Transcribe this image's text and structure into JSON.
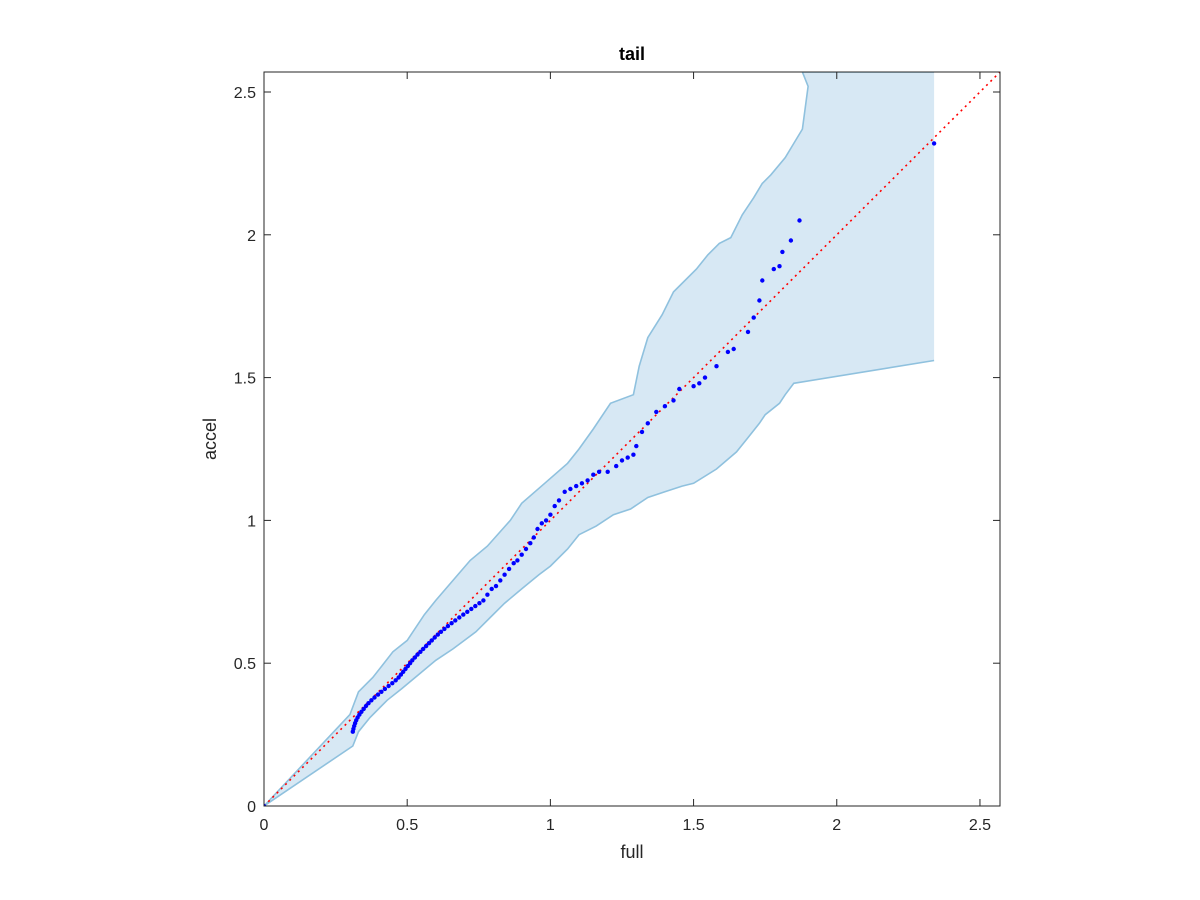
{
  "chart_data": {
    "type": "scatter",
    "title": "tail",
    "xlabel": "full",
    "ylabel": "accel",
    "xlim": [
      0,
      2.57
    ],
    "ylim": [
      0,
      2.57
    ],
    "xticks": [
      0,
      0.5,
      1,
      1.5,
      2,
      2.5
    ],
    "yticks": [
      0,
      0.5,
      1,
      1.5,
      2,
      2.5
    ],
    "xtick_labels": [
      "0",
      "0.5",
      "1",
      "1.5",
      "2",
      "2.5"
    ],
    "ytick_labels": [
      "0",
      "0.5",
      "1",
      "1.5",
      "2",
      "2.5"
    ],
    "grid": false,
    "colors": {
      "points": "#0000ff",
      "reference_line": "#ff0000",
      "band_fill": "#d7e8f4",
      "band_edge": "#8fc1de",
      "axis": "#262626"
    },
    "reference_line": {
      "x": [
        0,
        2.57
      ],
      "y": [
        0,
        2.57
      ],
      "style": "dotted"
    },
    "band": {
      "upper": [
        [
          0,
          0
        ],
        [
          0.3,
          0.32
        ],
        [
          0.33,
          0.4
        ],
        [
          0.38,
          0.45
        ],
        [
          0.45,
          0.54
        ],
        [
          0.5,
          0.58
        ],
        [
          0.56,
          0.67
        ],
        [
          0.6,
          0.72
        ],
        [
          0.66,
          0.79
        ],
        [
          0.72,
          0.86
        ],
        [
          0.78,
          0.91
        ],
        [
          0.86,
          1.0
        ],
        [
          0.9,
          1.06
        ],
        [
          0.98,
          1.13
        ],
        [
          1.06,
          1.2
        ],
        [
          1.1,
          1.25
        ],
        [
          1.15,
          1.32
        ],
        [
          1.21,
          1.41
        ],
        [
          1.29,
          1.44
        ],
        [
          1.31,
          1.54
        ],
        [
          1.34,
          1.64
        ],
        [
          1.39,
          1.72
        ],
        [
          1.43,
          1.8
        ],
        [
          1.51,
          1.88
        ],
        [
          1.55,
          1.93
        ],
        [
          1.59,
          1.97
        ],
        [
          1.63,
          1.99
        ],
        [
          1.67,
          2.07
        ],
        [
          1.71,
          2.13
        ],
        [
          1.74,
          2.18
        ],
        [
          1.77,
          2.21
        ],
        [
          1.82,
          2.27
        ],
        [
          1.85,
          2.32
        ],
        [
          1.88,
          2.37
        ],
        [
          1.9,
          2.52
        ],
        [
          1.88,
          2.57
        ],
        [
          2.34,
          2.57
        ]
      ],
      "lower": [
        [
          2.34,
          1.56
        ],
        [
          1.85,
          1.48
        ],
        [
          1.82,
          1.44
        ],
        [
          1.8,
          1.41
        ],
        [
          1.75,
          1.37
        ],
        [
          1.73,
          1.34
        ],
        [
          1.69,
          1.29
        ],
        [
          1.65,
          1.24
        ],
        [
          1.58,
          1.18
        ],
        [
          1.5,
          1.13
        ],
        [
          1.46,
          1.12
        ],
        [
          1.4,
          1.1
        ],
        [
          1.34,
          1.08
        ],
        [
          1.28,
          1.04
        ],
        [
          1.22,
          1.02
        ],
        [
          1.16,
          0.98
        ],
        [
          1.1,
          0.95
        ],
        [
          1.06,
          0.9
        ],
        [
          1.0,
          0.84
        ],
        [
          0.96,
          0.81
        ],
        [
          0.9,
          0.76
        ],
        [
          0.84,
          0.71
        ],
        [
          0.79,
          0.66
        ],
        [
          0.74,
          0.61
        ],
        [
          0.66,
          0.55
        ],
        [
          0.6,
          0.51
        ],
        [
          0.54,
          0.46
        ],
        [
          0.48,
          0.41
        ],
        [
          0.43,
          0.37
        ],
        [
          0.37,
          0.31
        ],
        [
          0.33,
          0.26
        ],
        [
          0.31,
          0.21
        ],
        [
          0,
          0
        ]
      ]
    },
    "points": [
      [
        0.0,
        0.0
      ],
      [
        0.31,
        0.26
      ],
      [
        0.312,
        0.27
      ],
      [
        0.315,
        0.28
      ],
      [
        0.318,
        0.29
      ],
      [
        0.322,
        0.3
      ],
      [
        0.327,
        0.31
      ],
      [
        0.333,
        0.32
      ],
      [
        0.34,
        0.33
      ],
      [
        0.348,
        0.34
      ],
      [
        0.356,
        0.35
      ],
      [
        0.365,
        0.36
      ],
      [
        0.375,
        0.37
      ],
      [
        0.386,
        0.38
      ],
      [
        0.398,
        0.39
      ],
      [
        0.41,
        0.4
      ],
      [
        0.422,
        0.41
      ],
      [
        0.435,
        0.42
      ],
      [
        0.448,
        0.43
      ],
      [
        0.46,
        0.44
      ],
      [
        0.47,
        0.45
      ],
      [
        0.478,
        0.46
      ],
      [
        0.486,
        0.47
      ],
      [
        0.494,
        0.48
      ],
      [
        0.502,
        0.49
      ],
      [
        0.51,
        0.5
      ],
      [
        0.518,
        0.51
      ],
      [
        0.527,
        0.52
      ],
      [
        0.536,
        0.53
      ],
      [
        0.546,
        0.54
      ],
      [
        0.556,
        0.55
      ],
      [
        0.566,
        0.56
      ],
      [
        0.576,
        0.57
      ],
      [
        0.586,
        0.58
      ],
      [
        0.596,
        0.59
      ],
      [
        0.607,
        0.6
      ],
      [
        0.618,
        0.61
      ],
      [
        0.63,
        0.62
      ],
      [
        0.642,
        0.63
      ],
      [
        0.655,
        0.64
      ],
      [
        0.668,
        0.65
      ],
      [
        0.682,
        0.66
      ],
      [
        0.696,
        0.67
      ],
      [
        0.71,
        0.68
      ],
      [
        0.724,
        0.69
      ],
      [
        0.738,
        0.7
      ],
      [
        0.752,
        0.71
      ],
      [
        0.766,
        0.72
      ],
      [
        0.78,
        0.74
      ],
      [
        0.795,
        0.76
      ],
      [
        0.81,
        0.77
      ],
      [
        0.825,
        0.79
      ],
      [
        0.84,
        0.81
      ],
      [
        0.856,
        0.83
      ],
      [
        0.872,
        0.85
      ],
      [
        0.885,
        0.86
      ],
      [
        0.9,
        0.88
      ],
      [
        0.915,
        0.9
      ],
      [
        0.93,
        0.92
      ],
      [
        0.942,
        0.94
      ],
      [
        0.955,
        0.97
      ],
      [
        0.97,
        0.99
      ],
      [
        0.985,
        1.0
      ],
      [
        1.0,
        1.02
      ],
      [
        1.015,
        1.05
      ],
      [
        1.03,
        1.07
      ],
      [
        1.05,
        1.1
      ],
      [
        1.07,
        1.11
      ],
      [
        1.09,
        1.12
      ],
      [
        1.11,
        1.13
      ],
      [
        1.13,
        1.14
      ],
      [
        1.15,
        1.16
      ],
      [
        1.17,
        1.17
      ],
      [
        1.2,
        1.17
      ],
      [
        1.23,
        1.19
      ],
      [
        1.25,
        1.21
      ],
      [
        1.27,
        1.22
      ],
      [
        1.29,
        1.23
      ],
      [
        1.3,
        1.26
      ],
      [
        1.32,
        1.31
      ],
      [
        1.34,
        1.34
      ],
      [
        1.37,
        1.38
      ],
      [
        1.4,
        1.4
      ],
      [
        1.43,
        1.42
      ],
      [
        1.45,
        1.46
      ],
      [
        1.5,
        1.47
      ],
      [
        1.52,
        1.48
      ],
      [
        1.54,
        1.5
      ],
      [
        1.58,
        1.54
      ],
      [
        1.62,
        1.59
      ],
      [
        1.64,
        1.6
      ],
      [
        1.69,
        1.66
      ],
      [
        1.71,
        1.71
      ],
      [
        1.73,
        1.77
      ],
      [
        1.74,
        1.84
      ],
      [
        1.8,
        1.89
      ],
      [
        1.81,
        1.94
      ],
      [
        1.84,
        1.98
      ],
      [
        1.87,
        2.05
      ],
      [
        1.78,
        1.88
      ],
      [
        2.34,
        2.32
      ]
    ]
  }
}
